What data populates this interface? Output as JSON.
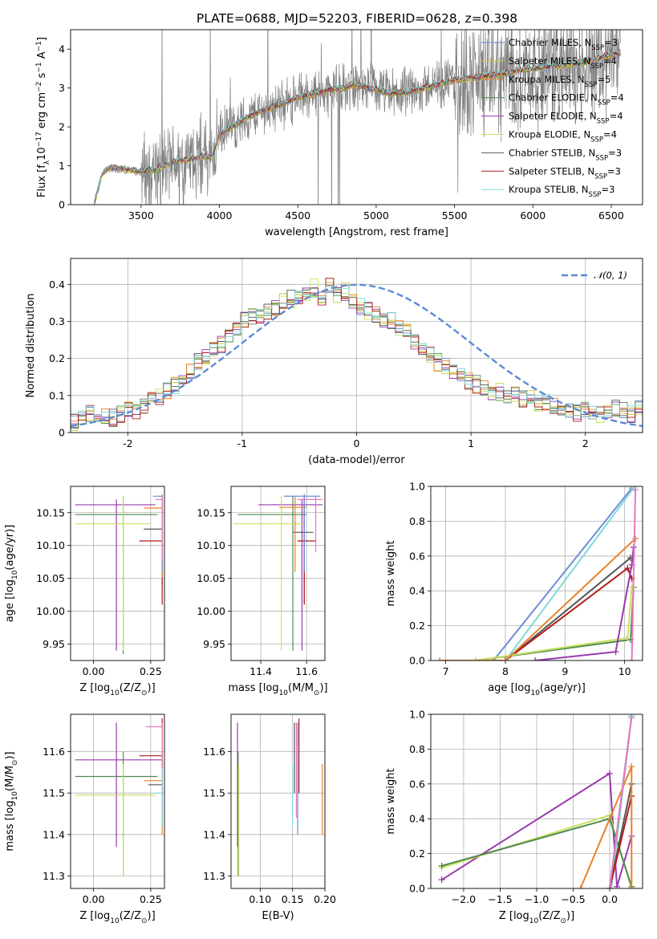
{
  "figure_title": "PLATE=0688, MJD=52203, FIBERID=0628, z=0.398",
  "colors": {
    "chabrier_miles": "#6a8fd6",
    "salpeter_miles": "#d4c23a",
    "kroupa_miles": "#e8822a",
    "chabrier_elodie": "#4f8a4f",
    "salpeter_elodie": "#9a3aad",
    "kroupa_elodie": "#c8e060",
    "chabrier_stelib": "#555555",
    "salpeter_stelib": "#b01c1c",
    "kroupa_stelib": "#7fd9d9",
    "pink": "#e879b9",
    "observed": "#808080",
    "normal_curve": "#5b8bd6"
  },
  "chart_data": [
    {
      "id": "spectrum",
      "type": "line",
      "title": "PLATE=0688, MJD=52203, FIBERID=0628, z=0.398",
      "xlabel": "wavelength [Angstrom, rest frame]",
      "ylabel": "Flux [f_λ 10^-17 erg cm^-2 s^-1 A^-1]",
      "xlim": [
        3050,
        6700
      ],
      "ylim": [
        0,
        4.5
      ],
      "xticks": [
        3500,
        4000,
        4500,
        5000,
        5500,
        6000,
        6500
      ],
      "yticks": [
        0,
        1,
        2,
        3,
        4
      ],
      "grid": false,
      "legend_position": "upper right",
      "continuum_x": [
        3200,
        3250,
        3300,
        3400,
        3500,
        3600,
        3700,
        3800,
        3900,
        3950,
        4000,
        4100,
        4200,
        4300,
        4400,
        4500,
        4600,
        4700,
        4800,
        4850,
        4900,
        5000,
        5100,
        5200,
        5300,
        5400,
        5500,
        5600,
        5700,
        5800,
        5900,
        6000,
        6100,
        6200,
        6300,
        6400,
        6500,
        6550
      ],
      "continuum_y": [
        0.0,
        0.8,
        0.95,
        0.9,
        0.85,
        0.9,
        1.1,
        1.15,
        1.25,
        1.2,
        1.8,
        2.05,
        2.3,
        2.45,
        2.6,
        2.75,
        2.85,
        2.95,
        3.0,
        3.1,
        3.05,
        2.95,
        2.85,
        2.9,
        3.0,
        3.1,
        3.2,
        3.25,
        3.3,
        3.35,
        3.45,
        3.5,
        3.55,
        3.6,
        3.65,
        3.75,
        3.85,
        3.9
      ],
      "legend": [
        {
          "label": "Chabrier MILES, N",
          "sub": "SSP",
          "suffix": "=3",
          "color": "chabrier_miles"
        },
        {
          "label": "Salpeter MILES, N",
          "sub": "SSP",
          "suffix": "=4",
          "color": "salpeter_miles"
        },
        {
          "label": "Kroupa MILES, N",
          "sub": "SSP",
          "suffix": "=5",
          "color": "kroupa_miles"
        },
        {
          "label": "Chabrier ELODIE, N",
          "sub": "SSP",
          "suffix": "=4",
          "color": "chabrier_elodie"
        },
        {
          "label": "Salpeter ELODIE, N",
          "sub": "SSP",
          "suffix": "=4",
          "color": "salpeter_elodie"
        },
        {
          "label": "Kroupa ELODIE, N",
          "sub": "SSP",
          "suffix": "=4",
          "color": "kroupa_elodie"
        },
        {
          "label": "Chabrier STELIB, N",
          "sub": "SSP",
          "suffix": "=3",
          "color": "chabrier_stelib"
        },
        {
          "label": "Salpeter STELIB, N",
          "sub": "SSP",
          "suffix": "=3",
          "color": "salpeter_stelib"
        },
        {
          "label": "Kroupa STELIB, N",
          "sub": "SSP",
          "suffix": "=3",
          "color": "kroupa_stelib"
        }
      ]
    },
    {
      "id": "residuals",
      "type": "histogram",
      "xlabel": "(data-model)/error",
      "ylabel": "Normed distribution",
      "xlim": [
        -2.5,
        2.5
      ],
      "ylim": [
        0,
        0.47
      ],
      "xticks": [
        -2,
        -1,
        0,
        1,
        2
      ],
      "yticks": [
        0.0,
        0.1,
        0.2,
        0.3,
        0.4
      ],
      "grid": true,
      "legend_position": "upper right",
      "legend_label": "𝒩(0, 1)",
      "bin_edges_start": -2.5,
      "bin_width": 0.1,
      "base_values": [
        0.03,
        0.04,
        0.05,
        0.05,
        0.04,
        0.04,
        0.05,
        0.06,
        0.06,
        0.07,
        0.09,
        0.1,
        0.11,
        0.13,
        0.15,
        0.17,
        0.19,
        0.2,
        0.22,
        0.24,
        0.26,
        0.28,
        0.3,
        0.31,
        0.32,
        0.33,
        0.34,
        0.35,
        0.36,
        0.37,
        0.38,
        0.39,
        0.36,
        0.4,
        0.37,
        0.38,
        0.35,
        0.34,
        0.33,
        0.32,
        0.31,
        0.3,
        0.28,
        0.27,
        0.25,
        0.23,
        0.21,
        0.19,
        0.18,
        0.16,
        0.15,
        0.14,
        0.13,
        0.12,
        0.11,
        0.11,
        0.1,
        0.1,
        0.09,
        0.09,
        0.08,
        0.08,
        0.07,
        0.07,
        0.06,
        0.05,
        0.06,
        0.05,
        0.05,
        0.06,
        0.07,
        0.06,
        0.05,
        0.07
      ],
      "series": [
        "chabrier_miles",
        "salpeter_miles",
        "kroupa_miles",
        "chabrier_elodie",
        "salpeter_elodie",
        "kroupa_elodie",
        "chabrier_stelib",
        "salpeter_stelib",
        "kroupa_stelib"
      ]
    },
    {
      "id": "age_vs_Z",
      "type": "errorbar",
      "xlabel": "Z [log10(Z/Z⊙)]",
      "ylabel": "age  [log10(age/yr)]",
      "xlim": [
        -0.1,
        0.31
      ],
      "ylim": [
        9.925,
        10.19
      ],
      "xticks": [
        0.0,
        0.25
      ],
      "xticklabels": [
        "0.00",
        "0.25"
      ],
      "yticks": [
        9.95,
        10.0,
        10.05,
        10.1,
        10.15
      ],
      "yticklabels": [
        "9.95",
        "10.00",
        "10.05",
        "10.10",
        "10.15"
      ],
      "grid": true,
      "points": [
        {
          "x": 0.1,
          "y": 10.162,
          "xlo": -0.08,
          "xhi": 0.27,
          "ylo": 9.94,
          "yhi": 10.17,
          "color": "salpeter_elodie"
        },
        {
          "x": 0.13,
          "y": 10.147,
          "xlo": -0.08,
          "xhi": 0.28,
          "ylo": 9.935,
          "yhi": 10.175,
          "color": "chabrier_elodie"
        },
        {
          "x": 0.13,
          "y": 10.133,
          "xlo": -0.08,
          "xhi": 0.25,
          "ylo": 9.94,
          "yhi": 10.175,
          "color": "kroupa_elodie"
        },
        {
          "x": 0.3,
          "y": 10.125,
          "xlo": 0.22,
          "xhi": 0.3,
          "ylo": 10.04,
          "yhi": 10.175,
          "color": "chabrier_stelib"
        },
        {
          "x": 0.3,
          "y": 10.107,
          "xlo": 0.2,
          "xhi": 0.3,
          "ylo": 10.01,
          "yhi": 10.17,
          "color": "salpeter_stelib"
        },
        {
          "x": 0.3,
          "y": 10.157,
          "xlo": 0.22,
          "xhi": 0.3,
          "ylo": 10.05,
          "yhi": 10.175,
          "color": "kroupa_miles"
        },
        {
          "x": 0.3,
          "y": 10.175,
          "xlo": 0.26,
          "xhi": 0.3,
          "ylo": 10.06,
          "yhi": 10.178,
          "color": "chabrier_miles"
        },
        {
          "x": 0.3,
          "y": 10.17,
          "xlo": 0.27,
          "xhi": 0.3,
          "ylo": 10.08,
          "yhi": 10.176,
          "color": "pink"
        }
      ]
    },
    {
      "id": "age_vs_mass",
      "type": "errorbar",
      "xlabel": "mass [log10(M/M⊙)]",
      "ylabel": "",
      "xlim": [
        11.27,
        11.68
      ],
      "ylim": [
        9.925,
        10.19
      ],
      "xticks": [
        11.4,
        11.6
      ],
      "xticklabels": [
        "11.4",
        "11.6"
      ],
      "yticks": [
        9.95,
        10.0,
        10.05,
        10.1,
        10.15
      ],
      "yticklabels": [
        "9.95",
        "10.00",
        "10.05",
        "10.10",
        "10.15"
      ],
      "grid": true,
      "points": [
        {
          "x": 11.58,
          "y": 10.162,
          "xlo": 11.39,
          "xhi": 11.67,
          "ylo": 9.94,
          "yhi": 10.17,
          "color": "salpeter_elodie"
        },
        {
          "x": 11.54,
          "y": 10.147,
          "xlo": 11.3,
          "xhi": 11.6,
          "ylo": 9.94,
          "yhi": 10.175,
          "color": "chabrier_elodie"
        },
        {
          "x": 11.49,
          "y": 10.133,
          "xlo": 11.28,
          "xhi": 11.59,
          "ylo": 9.94,
          "yhi": 10.175,
          "color": "kroupa_elodie"
        },
        {
          "x": 11.59,
          "y": 10.12,
          "xlo": 11.54,
          "xhi": 11.63,
          "ylo": 10.01,
          "yhi": 10.175,
          "color": "chabrier_stelib"
        },
        {
          "x": 11.59,
          "y": 10.107,
          "xlo": 11.56,
          "xhi": 11.64,
          "ylo": 10.01,
          "yhi": 10.17,
          "color": "salpeter_stelib"
        },
        {
          "x": 11.55,
          "y": 10.158,
          "xlo": 11.48,
          "xhi": 11.6,
          "ylo": 10.06,
          "yhi": 10.175,
          "color": "kroupa_miles"
        },
        {
          "x": 11.59,
          "y": 10.175,
          "xlo": 11.5,
          "xhi": 11.66,
          "ylo": 10.06,
          "yhi": 10.178,
          "color": "chabrier_miles"
        },
        {
          "x": 11.64,
          "y": 10.17,
          "xlo": 11.56,
          "xhi": 11.67,
          "ylo": 10.09,
          "yhi": 10.176,
          "color": "pink"
        }
      ]
    },
    {
      "id": "mass_weight_vs_age",
      "type": "line",
      "xlabel": "age  [log10(age/yr)]",
      "ylabel": "mass weight",
      "xlim": [
        6.75,
        10.3
      ],
      "ylim": [
        0.0,
        1.0
      ],
      "xticks": [
        7,
        8,
        9,
        10
      ],
      "yticks": [
        0.0,
        0.2,
        0.4,
        0.6,
        0.8,
        1.0
      ],
      "yticklabels": [
        "0.0",
        "0.2",
        "0.4",
        "0.6",
        "0.8",
        "1.0"
      ],
      "grid": true,
      "series": [
        {
          "color": "chabrier_miles",
          "x": [
            7.8,
            10.12
          ],
          "y": [
            0.0,
            0.99
          ]
        },
        {
          "color": "kroupa_stelib",
          "x": [
            8.0,
            10.15
          ],
          "y": [
            0.0,
            0.99
          ]
        },
        {
          "color": "chabrier_stelib",
          "x": [
            8.0,
            10.1
          ],
          "y": [
            0.0,
            0.59
          ]
        },
        {
          "color": "salpeter_stelib",
          "x": [
            8.0,
            10.05,
            10.12
          ],
          "y": [
            0.0,
            0.53,
            0.47
          ]
        },
        {
          "color": "chabrier_elodie",
          "x": [
            7.5,
            10.1,
            10.15
          ],
          "y": [
            0.0,
            0.12,
            0.42
          ]
        },
        {
          "color": "kroupa_elodie",
          "x": [
            7.5,
            10.05,
            10.12
          ],
          "y": [
            0.0,
            0.13,
            0.42
          ]
        },
        {
          "color": "salpeter_elodie",
          "x": [
            8.5,
            9.85,
            10.12,
            10.15
          ],
          "y": [
            0.0,
            0.05,
            0.55,
            0.65
          ]
        },
        {
          "color": "kroupa_miles",
          "x": [
            6.9,
            8.0,
            10.18
          ],
          "y": [
            0.0,
            0.0,
            0.7
          ]
        },
        {
          "color": "pink",
          "x": [
            10.12,
            10.18
          ],
          "y": [
            0.0,
            0.98
          ]
        }
      ]
    },
    {
      "id": "mass_vs_Z",
      "type": "errorbar",
      "xlabel": "Z [log10(Z/Z⊙)]",
      "ylabel": "mass [log10(M/M⊙)]",
      "xlim": [
        -0.1,
        0.31
      ],
      "ylim": [
        11.27,
        11.69
      ],
      "xticks": [
        0.0,
        0.25
      ],
      "xticklabels": [
        "0.00",
        "0.25"
      ],
      "yticks": [
        11.3,
        11.4,
        11.5,
        11.6
      ],
      "yticklabels": [
        "11.3",
        "11.4",
        "11.5",
        "11.6"
      ],
      "grid": true,
      "points": [
        {
          "x": 0.1,
          "y": 11.58,
          "xlo": -0.08,
          "xhi": 0.3,
          "ylo": 11.37,
          "yhi": 11.67,
          "color": "salpeter_elodie"
        },
        {
          "x": 0.13,
          "y": 11.54,
          "xlo": -0.08,
          "xhi": 0.28,
          "ylo": 11.3,
          "yhi": 11.6,
          "color": "chabrier_elodie"
        },
        {
          "x": 0.13,
          "y": 11.495,
          "xlo": -0.08,
          "xhi": 0.27,
          "ylo": 11.3,
          "yhi": 11.57,
          "color": "kroupa_elodie"
        },
        {
          "x": 0.3,
          "y": 11.59,
          "xlo": 0.2,
          "xhi": 0.3,
          "ylo": 11.56,
          "yhi": 11.68,
          "color": "salpeter_stelib"
        },
        {
          "x": 0.3,
          "y": 11.53,
          "xlo": 0.22,
          "xhi": 0.3,
          "ylo": 11.4,
          "yhi": 11.67,
          "color": "kroupa_miles"
        },
        {
          "x": 0.3,
          "y": 11.52,
          "xlo": 0.24,
          "xhi": 0.3,
          "ylo": 11.42,
          "yhi": 11.6,
          "color": "chabrier_stelib"
        },
        {
          "x": 0.3,
          "y": 11.66,
          "xlo": 0.23,
          "xhi": 0.3,
          "ylo": 11.45,
          "yhi": 11.67,
          "color": "pink"
        },
        {
          "x": 0.3,
          "y": 11.5,
          "xlo": 0.26,
          "xhi": 0.3,
          "ylo": 11.42,
          "yhi": 11.56,
          "color": "kroupa_stelib"
        }
      ]
    },
    {
      "id": "mass_vs_ebv",
      "type": "errorbar",
      "xlabel": "E(B-V)",
      "ylabel": "",
      "xlim": [
        0.055,
        0.2
      ],
      "ylim": [
        11.27,
        11.69
      ],
      "xticks": [
        0.1,
        0.15,
        0.2
      ],
      "xticklabels": [
        "0.10",
        "0.15",
        "0.20"
      ],
      "yticks": [
        11.3,
        11.4,
        11.5,
        11.6
      ],
      "yticklabels": [
        "11.3",
        "11.4",
        "11.5",
        "11.6"
      ],
      "grid": true,
      "points": [
        {
          "x": 0.065,
          "y": 11.58,
          "ylo": 11.37,
          "yhi": 11.67,
          "color": "salpeter_elodie"
        },
        {
          "x": 0.066,
          "y": 11.5,
          "ylo": 11.3,
          "yhi": 11.6,
          "color": "chabrier_elodie"
        },
        {
          "x": 0.067,
          "y": 11.49,
          "ylo": 11.3,
          "yhi": 11.57,
          "color": "kroupa_elodie"
        },
        {
          "x": 0.15,
          "y": 11.5,
          "ylo": 11.42,
          "yhi": 11.57,
          "color": "kroupa_stelib"
        },
        {
          "x": 0.153,
          "y": 11.6,
          "ylo": 11.5,
          "yhi": 11.67,
          "color": "chabrier_stelib"
        },
        {
          "x": 0.156,
          "y": 11.59,
          "ylo": 11.44,
          "yhi": 11.67,
          "color": "pink"
        },
        {
          "x": 0.158,
          "y": 11.55,
          "ylo": 11.4,
          "yhi": 11.67,
          "color": "chabrier_miles"
        },
        {
          "x": 0.16,
          "y": 11.6,
          "ylo": 11.5,
          "yhi": 11.68,
          "color": "salpeter_stelib"
        },
        {
          "x": 0.196,
          "y": 11.5,
          "ylo": 11.4,
          "yhi": 11.57,
          "color": "kroupa_miles"
        }
      ]
    },
    {
      "id": "mass_weight_vs_Z",
      "type": "line",
      "xlabel": "Z [log10(Z/Z⊙)]",
      "ylabel": "mass weight",
      "xlim": [
        -2.45,
        0.45
      ],
      "ylim": [
        0.0,
        1.0
      ],
      "xticks": [
        -2.0,
        -1.5,
        -1.0,
        -0.5,
        0.0
      ],
      "xticklabels": [
        "−2.0",
        "−1.5",
        "−1.0",
        "−0.5",
        "0.0"
      ],
      "yticks": [
        0.0,
        0.2,
        0.4,
        0.6,
        0.8,
        1.0
      ],
      "yticklabels": [
        "0.0",
        "0.2",
        "0.4",
        "0.6",
        "0.8",
        "1.0"
      ],
      "grid": true,
      "series": [
        {
          "color": "salpeter_elodie",
          "x": [
            -2.3,
            0.0,
            0.1,
            0.3
          ],
          "y": [
            0.05,
            0.66,
            0.01,
            0.3
          ]
        },
        {
          "color": "kroupa_elodie",
          "x": [
            -2.3,
            0.0,
            0.3
          ],
          "y": [
            0.12,
            0.42,
            0.0
          ]
        },
        {
          "color": "chabrier_elodie",
          "x": [
            -2.3,
            0.0,
            0.3
          ],
          "y": [
            0.13,
            0.4,
            0.01
          ]
        },
        {
          "color": "chabrier_miles",
          "x": [
            0.0,
            0.3
          ],
          "y": [
            0.0,
            0.99
          ]
        },
        {
          "color": "kroupa_stelib",
          "x": [
            0.02,
            0.3
          ],
          "y": [
            0.0,
            0.99
          ]
        },
        {
          "color": "chabrier_stelib",
          "x": [
            0.0,
            0.3
          ],
          "y": [
            0.0,
            0.6
          ]
        },
        {
          "color": "salpeter_stelib",
          "x": [
            0.0,
            0.3
          ],
          "y": [
            0.0,
            0.53
          ]
        },
        {
          "color": "kroupa_miles",
          "x": [
            -0.4,
            0.3,
            0.3
          ],
          "y": [
            0.0,
            0.7,
            0.0
          ]
        },
        {
          "color": "pink",
          "x": [
            0.0,
            0.3
          ],
          "y": [
            0.0,
            0.98
          ]
        }
      ]
    }
  ]
}
